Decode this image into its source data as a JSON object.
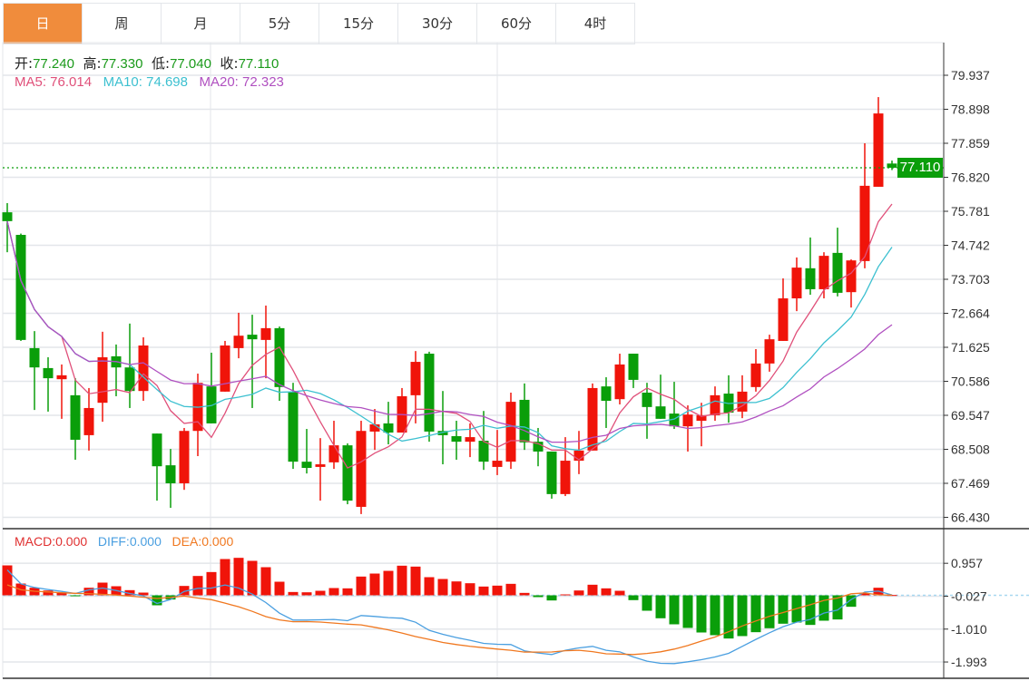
{
  "tabs": [
    {
      "label": "日",
      "active": true
    },
    {
      "label": "周"
    },
    {
      "label": "月"
    },
    {
      "label": "5分"
    },
    {
      "label": "15分"
    },
    {
      "label": "30分"
    },
    {
      "label": "60分"
    },
    {
      "label": "4时"
    }
  ],
  "ohlc_legend": {
    "open_label": "开:",
    "open": "77.240",
    "high_label": "高:",
    "high": "77.330",
    "low_label": "低:",
    "low": "77.040",
    "close_label": "收:",
    "close": "77.110"
  },
  "ma_legend": {
    "ma5": "MA5: 76.014",
    "ma10": "MA10: 74.698",
    "ma20": "MA20: 72.323"
  },
  "macd_legend": {
    "macd": "MACD:0.000",
    "diff": "DIFF:0.000",
    "dea": "DEA:0.000"
  },
  "current_price": "77.110",
  "colors": {
    "up": "#f0140a",
    "down": "#0a9e0a",
    "ma5": "#e0507a",
    "ma10": "#3cc0d0",
    "ma20": "#b050c0",
    "diff": "#4a9fe0",
    "dea": "#f07820",
    "active_tab": "#f08c3c"
  },
  "chart_data": [
    {
      "type": "candlestick",
      "yticks": [
        "79.937",
        "78.898",
        "77.859",
        "76.820",
        "75.781",
        "74.742",
        "73.703",
        "72.664",
        "71.625",
        "70.586",
        "69.547",
        "68.508",
        "67.469",
        "66.430"
      ],
      "ylim": [
        66.43,
        79.937
      ],
      "up_color": "red",
      "down_color": "green",
      "candles": [
        [
          75.75,
          76.03,
          74.53,
          75.48
        ],
        [
          75.06,
          75.1,
          71.82,
          71.85
        ],
        [
          71.6,
          72.12,
          69.71,
          71.01
        ],
        [
          70.99,
          71.32,
          69.66,
          70.68
        ],
        [
          70.65,
          71.1,
          69.44,
          70.77
        ],
        [
          70.16,
          70.68,
          68.19,
          68.8
        ],
        [
          68.94,
          70.38,
          68.47,
          69.77
        ],
        [
          69.93,
          72.1,
          69.35,
          71.32
        ],
        [
          71.35,
          71.71,
          70.13,
          71.01
        ],
        [
          71.01,
          72.35,
          69.77,
          70.29
        ],
        [
          70.29,
          71.93,
          69.99,
          71.68
        ],
        [
          68.99,
          68.99,
          66.94,
          67.99
        ],
        [
          68.02,
          68.52,
          66.72,
          67.47
        ],
        [
          67.47,
          69.16,
          67.27,
          69.07
        ],
        [
          69.07,
          70.82,
          68.3,
          70.54
        ],
        [
          70.43,
          71.46,
          69.3,
          69.3
        ],
        [
          70.27,
          71.82,
          70.27,
          71.68
        ],
        [
          71.6,
          72.68,
          71.29,
          71.98
        ],
        [
          72.01,
          72.62,
          69.77,
          71.87
        ],
        [
          71.85,
          72.9,
          70.68,
          72.21
        ],
        [
          72.21,
          72.26,
          69.99,
          70.41
        ],
        [
          70.27,
          70.54,
          67.91,
          68.13
        ],
        [
          68.13,
          69.13,
          67.77,
          67.94
        ],
        [
          67.97,
          68.85,
          66.94,
          68.05
        ],
        [
          68.11,
          69.38,
          67.91,
          68.63
        ],
        [
          68.63,
          68.69,
          66.83,
          66.94
        ],
        [
          66.75,
          69.38,
          66.53,
          69.07
        ],
        [
          69.05,
          69.74,
          68.49,
          69.27
        ],
        [
          69.3,
          69.96,
          68.66,
          69.02
        ],
        [
          69.02,
          70.38,
          69.02,
          70.13
        ],
        [
          70.16,
          71.51,
          69.3,
          71.18
        ],
        [
          71.43,
          71.49,
          68.74,
          69.05
        ],
        [
          69.07,
          70.29,
          68.05,
          68.94
        ],
        [
          68.91,
          69.38,
          68.19,
          68.74
        ],
        [
          68.74,
          69.3,
          68.27,
          68.88
        ],
        [
          68.77,
          69.68,
          67.88,
          68.13
        ],
        [
          67.97,
          69.1,
          67.72,
          68.16
        ],
        [
          68.13,
          70.24,
          67.91,
          69.96
        ],
        [
          70.02,
          70.52,
          68.49,
          68.72
        ],
        [
          68.74,
          69.16,
          67.99,
          68.44
        ],
        [
          68.44,
          68.44,
          67.0,
          67.14
        ],
        [
          67.14,
          68.88,
          67.08,
          68.16
        ],
        [
          68.16,
          69.07,
          67.75,
          68.47
        ],
        [
          68.47,
          70.52,
          68.47,
          70.38
        ],
        [
          70.43,
          70.71,
          69.16,
          69.99
        ],
        [
          70.04,
          71.43,
          69.88,
          71.1
        ],
        [
          71.43,
          71.43,
          70.38,
          70.63
        ],
        [
          70.24,
          70.54,
          68.83,
          69.8
        ],
        [
          69.82,
          70.79,
          69.44,
          69.44
        ],
        [
          69.6,
          70.57,
          69.13,
          69.21
        ],
        [
          69.21,
          69.85,
          68.44,
          69.57
        ],
        [
          69.38,
          69.93,
          68.6,
          69.55
        ],
        [
          69.55,
          70.43,
          69.38,
          70.16
        ],
        [
          70.21,
          70.77,
          69.32,
          69.63
        ],
        [
          69.66,
          70.77,
          69.46,
          70.27
        ],
        [
          70.41,
          71.57,
          70.27,
          71.13
        ],
        [
          71.13,
          72.01,
          70.88,
          71.87
        ],
        [
          71.82,
          73.73,
          71.82,
          73.12
        ],
        [
          73.12,
          74.37,
          72.73,
          74.06
        ],
        [
          74.04,
          74.98,
          73.23,
          73.4
        ],
        [
          73.4,
          74.53,
          73.12,
          74.42
        ],
        [
          74.51,
          75.28,
          73.18,
          73.29
        ],
        [
          73.31,
          74.31,
          72.84,
          74.28
        ],
        [
          74.26,
          77.86,
          74.04,
          76.56
        ],
        [
          76.53,
          79.27,
          76.53,
          78.77
        ],
        [
          77.24,
          77.33,
          77.04,
          77.11
        ]
      ],
      "moving_averages": [
        5,
        10,
        20
      ]
    },
    {
      "type": "bar+line",
      "yticks": [
        "0.957",
        "-0.027",
        "-1.010",
        "-1.993"
      ],
      "macd": [
        0.894,
        0.352,
        0.226,
        0.144,
        0.081,
        -0.01,
        0.226,
        0.379,
        0.271,
        0.154,
        0.081,
        -0.298,
        -0.126,
        0.28,
        0.578,
        0.695,
        1.084,
        1.12,
        1.03,
        0.84,
        0.406,
        0.099,
        0.09,
        0.135,
        0.217,
        0.208,
        0.56,
        0.65,
        0.731,
        0.885,
        0.858,
        0.542,
        0.488,
        0.415,
        0.361,
        0.262,
        0.289,
        0.343,
        0.072,
        -0.054,
        -0.154,
        0.027,
        0.144,
        0.316,
        0.208,
        0.135,
        -0.144,
        -0.461,
        -0.686,
        -0.867,
        -0.975,
        -1.111,
        -1.192,
        -1.291,
        -1.219,
        -1.102,
        -0.984,
        -0.849,
        -0.813,
        -0.885,
        -0.759,
        -0.722,
        -0.343,
        0.054,
        0.226,
        0.009
      ],
      "diff": [
        0.759,
        0.343,
        0.235,
        0.172,
        0.117,
        0.054,
        0.163,
        0.217,
        0.144,
        0.054,
        -0.018,
        -0.244,
        -0.126,
        0.117,
        0.208,
        0.217,
        0.307,
        0.217,
        0.036,
        -0.217,
        -0.533,
        -0.74,
        -0.74,
        -0.731,
        -0.722,
        -0.758,
        -0.605,
        -0.632,
        -0.668,
        -0.686,
        -0.804,
        -1.047,
        -1.165,
        -1.264,
        -1.345,
        -1.436,
        -1.463,
        -1.472,
        -1.66,
        -1.725,
        -1.77,
        -1.643,
        -1.571,
        -1.526,
        -1.643,
        -1.689,
        -1.842,
        -1.969,
        -2.032,
        -2.041,
        -1.987,
        -1.923,
        -1.842,
        -1.734,
        -1.526,
        -1.318,
        -1.12,
        -0.939,
        -0.804,
        -0.722,
        -0.533,
        -0.442,
        -0.126,
        0.099,
        0.126,
        0.009
      ]
    }
  ]
}
